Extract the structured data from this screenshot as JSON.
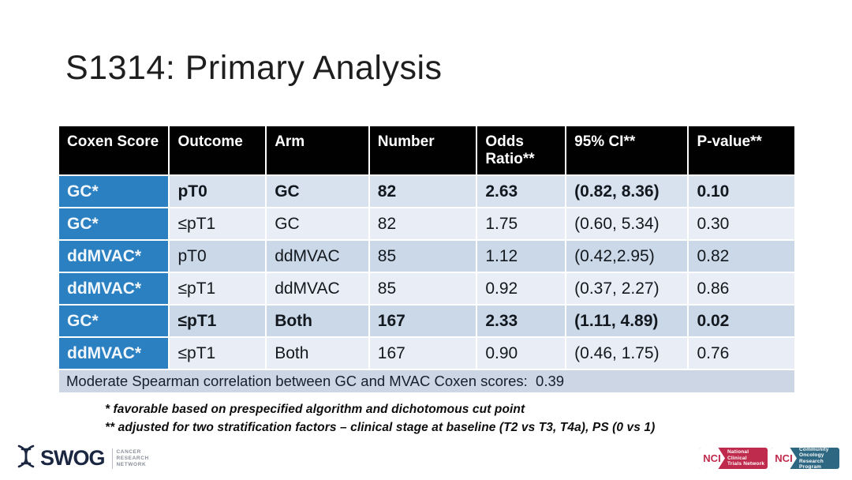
{
  "slide": {
    "title": "S1314: Primary Analysis"
  },
  "table": {
    "headers": [
      "Coxen Score",
      "Outcome",
      "Arm",
      "Number",
      "Odds Ratio**",
      "95% CI**",
      "P-value**"
    ],
    "rows": [
      {
        "cells": [
          "GC*",
          "pT0",
          "GC",
          "82",
          "2.63",
          "(0.82, 8.36)",
          "0.10"
        ],
        "bold": true,
        "shade": "mid"
      },
      {
        "cells": [
          "GC*",
          "≤pT1",
          "GC",
          "82",
          "1.75",
          "(0.60, 5.34)",
          "0.30"
        ],
        "bold": false,
        "shade": "light"
      },
      {
        "cells": [
          "ddMVAC*",
          "pT0",
          "ddMVAC",
          "85",
          "1.12",
          "(0.42,2.95)",
          "0.82"
        ],
        "bold": false,
        "shade": "dark"
      },
      {
        "cells": [
          "ddMVAC*",
          "≤pT1",
          "ddMVAC",
          "85",
          "0.92",
          "(0.37, 2.27)",
          "0.86"
        ],
        "bold": false,
        "shade": "light"
      },
      {
        "cells": [
          "GC*",
          "≤pT1",
          "Both",
          "167",
          "2.33",
          "(1.11, 4.89)",
          "0.02"
        ],
        "bold": true,
        "shade": "dark"
      },
      {
        "cells": [
          "ddMVAC*",
          "≤pT1",
          "Both",
          "167",
          "0.90",
          "(0.46, 1.75)",
          "0.76"
        ],
        "bold": false,
        "shade": "light"
      }
    ],
    "footer_note": "Moderate Spearman correlation between GC and MVAC Coxen scores:  0.39"
  },
  "footnotes": {
    "line1": "* favorable based on prespecified algorithm and dichotomous cut point",
    "line2": "** adjusted for two stratification factors – clinical stage at baseline (T2 vs T3, T4a), PS (0 vs 1)"
  },
  "footer": {
    "swog": {
      "name": "SWOG",
      "icon": "dna-helix-icon",
      "tagline_line1": "CANCER",
      "tagline_line2": "RESEARCH",
      "tagline_line3": "NETWORK"
    },
    "nci_badge_1": {
      "abbr": "NCI",
      "label_line1": "National Clinical",
      "label_line2": "Trials Network",
      "color": "#bf2b4c"
    },
    "nci_badge_2": {
      "abbr": "NCI",
      "label_line1": "Community Oncology",
      "label_line2": "Research Program",
      "color": "#2e6781"
    }
  },
  "colors": {
    "header_bg": "#010101",
    "header_text": "#ffffff",
    "coxen_column_bg": "#2b80c2",
    "row_mid": "#d8e2ef",
    "row_light": "#e9edf5",
    "row_dark": "#cbd8e8",
    "footer_bar_bg": "#ccd6e4",
    "swog_navy": "#1b2740"
  }
}
